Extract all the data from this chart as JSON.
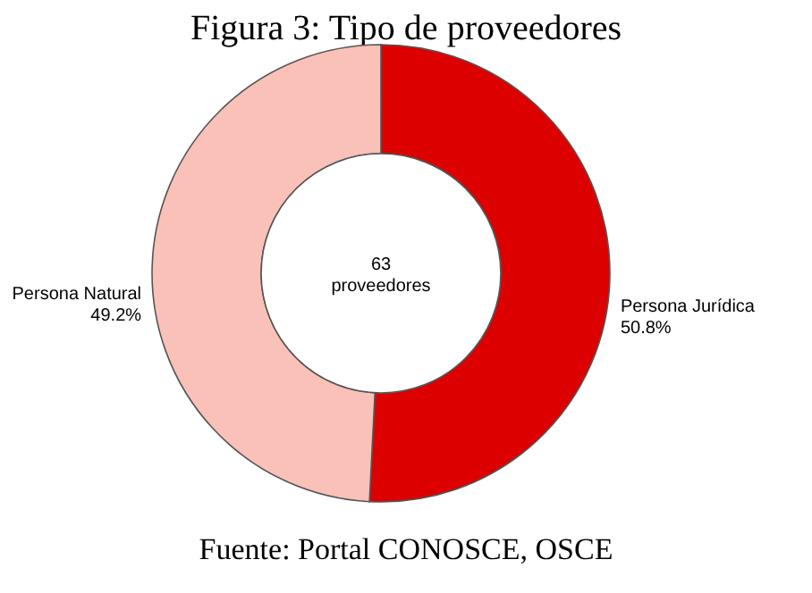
{
  "chart_data": {
    "type": "donut",
    "title": "Figura 3: Tipo de proveedores",
    "categories": [
      "Persona Jurídica",
      "Persona Natural"
    ],
    "values": [
      50.8,
      49.2
    ],
    "value_labels": [
      "50.8%",
      "49.2%"
    ],
    "colors": [
      "#dd0000",
      "#f9c1b8"
    ],
    "annotations": [
      "63 proveedores",
      "Fuente: Portal CONOSCE, OSCE"
    ]
  }
}
